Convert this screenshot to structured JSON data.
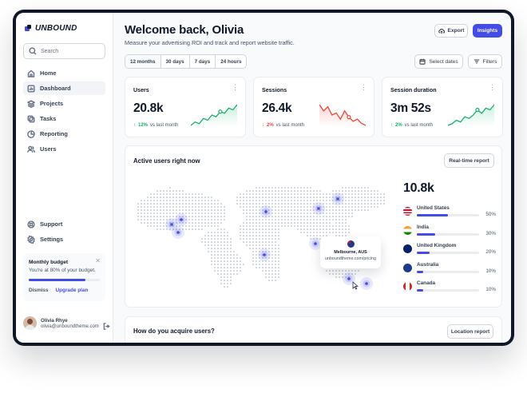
{
  "brand": {
    "name": "UNBOUND",
    "accent": "#444ce7"
  },
  "sidebar": {
    "search_placeholder": "Search",
    "items": [
      {
        "label": "Home",
        "icon": "home-icon",
        "active": false
      },
      {
        "label": "Dashboard",
        "icon": "bar-chart-icon",
        "active": true
      },
      {
        "label": "Projects",
        "icon": "layers-icon",
        "active": false
      },
      {
        "label": "Tasks",
        "icon": "check-square-icon",
        "active": false
      },
      {
        "label": "Reporting",
        "icon": "pie-chart-icon",
        "active": false
      },
      {
        "label": "Users",
        "icon": "users-icon",
        "active": false
      }
    ],
    "bottom_items": [
      {
        "label": "Support",
        "icon": "life-buoy-icon"
      },
      {
        "label": "Settings",
        "icon": "settings-icon"
      }
    ],
    "budget": {
      "title": "Monthly budget",
      "text": "You're at 80% of your budget.",
      "progress": 0.8,
      "dismiss": "Dismiss",
      "upgrade": "Upgrade plan"
    },
    "user": {
      "name": "Olivia Rhye",
      "email": "olivia@unboundtheme.com"
    }
  },
  "header": {
    "title": "Welcome back, Olivia",
    "subtitle": "Measure your advertising ROI and track and report website traffic.",
    "export": "Export",
    "insights": "Insights"
  },
  "filters": {
    "ranges": [
      "12 months",
      "30 days",
      "7 days",
      "24 hours"
    ],
    "select_dates": "Select dates",
    "filters": "Filters"
  },
  "metrics": [
    {
      "label": "Users",
      "value": "20.8k",
      "delta": "12%",
      "trend": "up",
      "compare": "vs last month",
      "color": "#17b26a",
      "spark": [
        3,
        5,
        4,
        7,
        6,
        9,
        8,
        11,
        10,
        13,
        12,
        15
      ]
    },
    {
      "label": "Sessions",
      "value": "26.4k",
      "delta": "2%",
      "trend": "down",
      "compare": "vs last month",
      "color": "#f04438",
      "spark": [
        14,
        11,
        13,
        9,
        10,
        7,
        11,
        8,
        6,
        7,
        5,
        4
      ]
    },
    {
      "label": "Session duration",
      "value": "3m 52s",
      "delta": "2%",
      "trend": "up",
      "compare": "vs last month",
      "color": "#17b26a",
      "spark": [
        3,
        4,
        6,
        5,
        8,
        7,
        9,
        12,
        10,
        13,
        12,
        15
      ]
    }
  ],
  "active_users": {
    "title": "Active users right now",
    "realtime": "Real-time report",
    "count": "10.8k",
    "countries": [
      {
        "name": "United States",
        "pct": "50%",
        "value": 0.5,
        "flag": "us-flag-icon"
      },
      {
        "name": "India",
        "pct": "30%",
        "value": 0.3,
        "flag": "india-flag-icon"
      },
      {
        "name": "United Kingdom",
        "pct": "20%",
        "value": 0.2,
        "flag": "uk-flag-icon"
      },
      {
        "name": "Australia",
        "pct": "10%",
        "value": 0.1,
        "flag": "australia-flag-icon"
      },
      {
        "name": "Canada",
        "pct": "10%",
        "value": 0.1,
        "flag": "canada-flag-icon"
      }
    ],
    "tooltip": {
      "city": "Melbourne, AUS",
      "url": "unboundtheme.com/pricing"
    }
  },
  "acquisition": {
    "title": "How do you acquire users?",
    "button": "Location report"
  }
}
